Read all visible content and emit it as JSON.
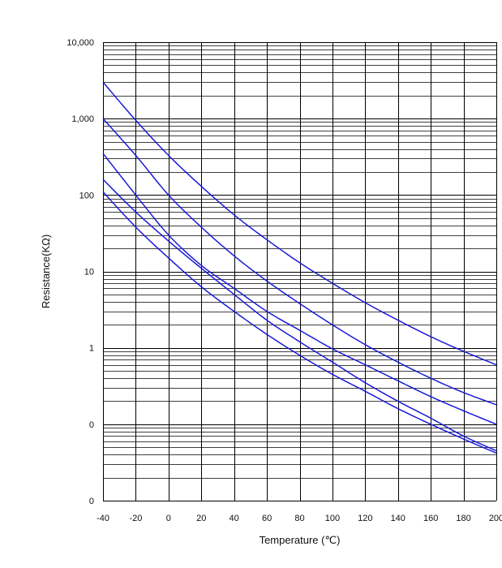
{
  "chart_data": {
    "type": "line",
    "title": "",
    "xlabel": "Temperature (℃)",
    "ylabel": "Resistance(KΩ)",
    "xlim": [
      -40,
      200
    ],
    "ylim": [
      0.01,
      10000
    ],
    "y_scale": "log",
    "x_ticks": [
      -40,
      -20,
      0,
      20,
      40,
      60,
      80,
      100,
      120,
      140,
      160,
      180,
      200
    ],
    "x_tick_labels": [
      "-40",
      "-20",
      "0",
      "20",
      "40",
      "60",
      "80",
      "100",
      "120",
      "140",
      "160",
      "180",
      "200"
    ],
    "y_ticks": [
      0.01,
      0.1,
      1,
      10,
      100,
      1000,
      10000
    ],
    "y_tick_labels": [
      "0",
      "0",
      "1",
      "10",
      "100",
      "1,000",
      "10,000"
    ],
    "grid": true,
    "line_color": "#1a1ad8",
    "grid_color": "#000000",
    "series": [
      {
        "x": [
          -40,
          -20,
          0,
          20,
          40,
          60,
          80,
          100,
          120,
          140,
          160,
          180,
          200
        ],
        "values": [
          3000,
          950,
          330,
          130,
          55,
          26,
          13,
          7,
          3.9,
          2.3,
          1.4,
          0.9,
          0.6
        ]
      },
      {
        "x": [
          -40,
          -20,
          0,
          20,
          40,
          60,
          80,
          100,
          120,
          140,
          160,
          180,
          200
        ],
        "values": [
          1000,
          330,
          100,
          38,
          16,
          7.5,
          3.8,
          2,
          1.1,
          0.65,
          0.4,
          0.26,
          0.18
        ]
      },
      {
        "x": [
          -40,
          -20,
          0,
          20,
          40,
          60,
          80,
          100,
          120,
          140,
          160,
          180,
          200
        ],
        "values": [
          350,
          100,
          30,
          12,
          6,
          3,
          1.7,
          0.97,
          0.6,
          0.37,
          0.23,
          0.15,
          0.1
        ]
      },
      {
        "x": [
          -40,
          -20,
          0,
          20,
          40,
          60,
          80,
          100,
          120,
          140,
          160,
          180,
          200
        ],
        "values": [
          160,
          60,
          25,
          11,
          5,
          2.3,
          1.2,
          0.65,
          0.35,
          0.2,
          0.12,
          0.07,
          0.045
        ]
      },
      {
        "x": [
          -40,
          -20,
          0,
          20,
          40,
          60,
          80,
          100,
          120,
          140,
          160,
          180,
          200
        ],
        "values": [
          110,
          38,
          15,
          6.3,
          3,
          1.5,
          0.8,
          0.45,
          0.27,
          0.16,
          0.1,
          0.064,
          0.042
        ]
      }
    ]
  }
}
